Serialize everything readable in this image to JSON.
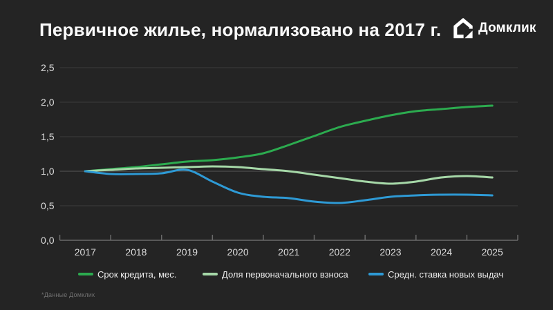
{
  "header": {
    "title": "Первичное жилье, нормализовано на 2017 г.",
    "logo_text": "Домклик"
  },
  "footnote": "*Данные Домклик",
  "colors": {
    "background": "#242424",
    "gridline": "#3b3b3b",
    "baseline_gridline": "#595959",
    "axis": "#6a6a6a",
    "tick_label": "#dcdcdc",
    "series_green": "#2cab4f",
    "series_pale_green": "#a6d8a8",
    "series_blue": "#2e9ad5"
  },
  "chart_data": {
    "type": "line",
    "title": "Первичное жилье, нормализовано на 2017 г.",
    "normalized_to": "2017",
    "grid": "horizontal",
    "legend_position": "bottom",
    "ylim": [
      0,
      2.5
    ],
    "ytick_step": 0.5,
    "baseline_value": 1.0,
    "y_tick_labels": [
      "0,0",
      "0,5",
      "1,0",
      "1,5",
      "2,0",
      "2,5"
    ],
    "x_tick_labels": [
      "2017",
      "2018",
      "2019",
      "2020",
      "2021",
      "2022",
      "2023",
      "2024",
      "2025"
    ],
    "x": [
      2017,
      2017.5,
      2018,
      2018.5,
      2019,
      2019.5,
      2020,
      2020.5,
      2021,
      2021.5,
      2022,
      2022.5,
      2023,
      2023.5,
      2024,
      2024.5,
      2025
    ],
    "series": [
      {
        "name": "Срок кредита, мес.",
        "color": "#2cab4f",
        "values": [
          1.0,
          1.03,
          1.06,
          1.1,
          1.14,
          1.16,
          1.2,
          1.26,
          1.38,
          1.51,
          1.64,
          1.73,
          1.81,
          1.87,
          1.9,
          1.93,
          1.95
        ]
      },
      {
        "name": "Доля первоначального взноса",
        "color": "#a6d8a8",
        "values": [
          1.0,
          1.02,
          1.04,
          1.05,
          1.06,
          1.07,
          1.06,
          1.03,
          1.0,
          0.95,
          0.9,
          0.85,
          0.82,
          0.85,
          0.91,
          0.93,
          0.91
        ]
      },
      {
        "name": "Средн. ставка новых выдач",
        "color": "#2e9ad5",
        "values": [
          1.0,
          0.96,
          0.96,
          0.97,
          1.02,
          0.85,
          0.69,
          0.63,
          0.61,
          0.56,
          0.54,
          0.58,
          0.63,
          0.65,
          0.66,
          0.66,
          0.65
        ]
      }
    ]
  }
}
